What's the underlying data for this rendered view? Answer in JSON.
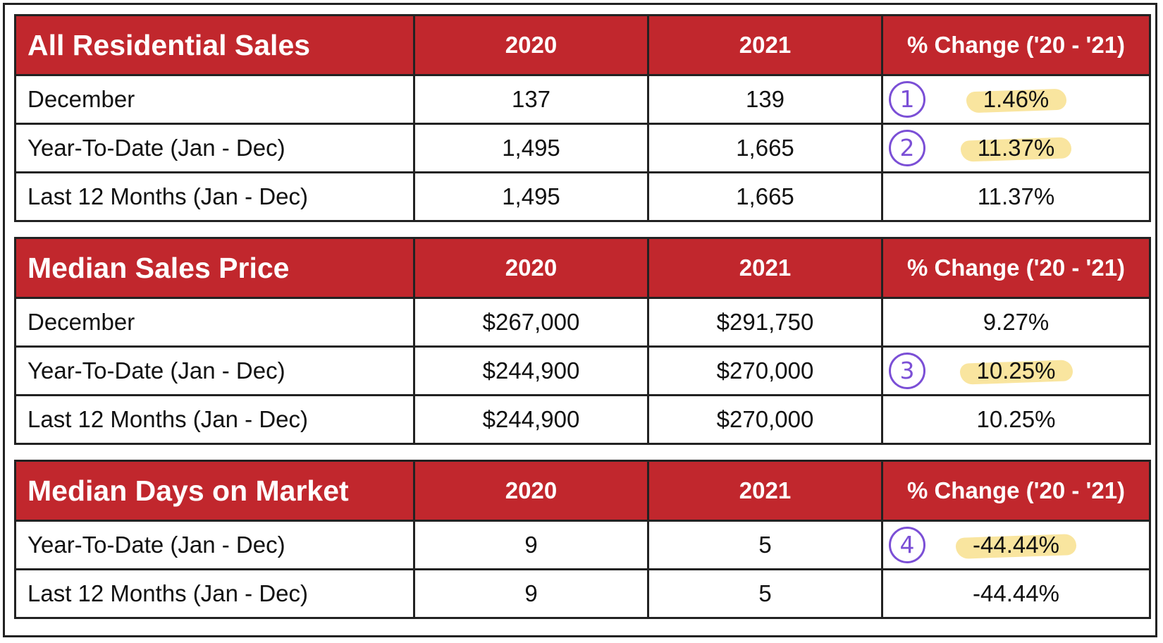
{
  "tables": [
    {
      "title": "All Residential Sales",
      "col_2020": "2020",
      "col_2021": "2021",
      "col_change": "% Change ('20 - '21)",
      "rows": [
        {
          "label": "December",
          "v2020": "137",
          "v2021": "139",
          "change": "1.46%",
          "badge": "1"
        },
        {
          "label": "Year-To-Date (Jan - Dec)",
          "v2020": "1,495",
          "v2021": "1,665",
          "change": "11.37%",
          "badge": "2"
        },
        {
          "label": "Last 12 Months (Jan - Dec)",
          "v2020": "1,495",
          "v2021": "1,665",
          "change": "11.37%"
        }
      ]
    },
    {
      "title": "Median Sales Price",
      "col_2020": "2020",
      "col_2021": "2021",
      "col_change": "% Change ('20 - '21)",
      "rows": [
        {
          "label": "December",
          "v2020": "$267,000",
          "v2021": "$291,750",
          "change": "9.27%"
        },
        {
          "label": "Year-To-Date (Jan - Dec)",
          "v2020": "$244,900",
          "v2021": "$270,000",
          "change": "10.25%",
          "badge": "3"
        },
        {
          "label": "Last 12 Months (Jan - Dec)",
          "v2020": "$244,900",
          "v2021": "$270,000",
          "change": "10.25%"
        }
      ]
    },
    {
      "title": "Median Days on Market",
      "col_2020": "2020",
      "col_2021": "2021",
      "col_change": "% Change ('20 - '21)",
      "rows": [
        {
          "label": "Year-To-Date (Jan - Dec)",
          "v2020": "9",
          "v2021": "5",
          "change": "-44.44%",
          "badge": "4"
        },
        {
          "label": "Last 12 Months (Jan - Dec)",
          "v2020": "9",
          "v2021": "5",
          "change": "-44.44%"
        }
      ]
    }
  ],
  "colors": {
    "header_bg": "#c1272d",
    "highlight": "#f8e08e",
    "badge": "#7b4fd6"
  }
}
